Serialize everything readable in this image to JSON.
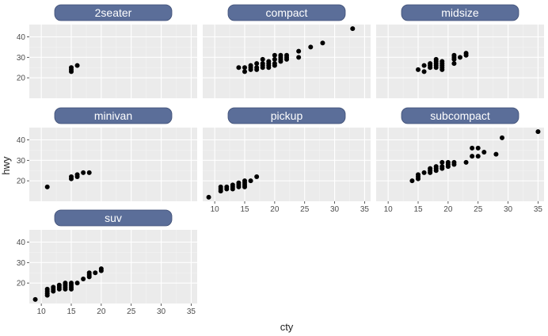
{
  "chart_data": {
    "type": "scatter",
    "xlabel": "cty",
    "ylabel": "hwy",
    "xlim": [
      8,
      36
    ],
    "ylim": [
      10,
      46
    ],
    "x_ticks": [
      10,
      15,
      20,
      25,
      30,
      35
    ],
    "y_ticks": [
      20,
      30,
      40
    ],
    "grid": true,
    "colors": {
      "panel_bg": "#ebebeb",
      "grid_major": "#ffffff",
      "grid_minor": "#f4f4f4",
      "strip_fill": "#5b6e99",
      "strip_text": "#ffffff",
      "point": "#000000",
      "axis_text": "#4d4d4d",
      "title_text": "#222222"
    },
    "facets": [
      {
        "name": "2seater",
        "points": [
          [
            15,
            23
          ],
          [
            15,
            24
          ],
          [
            15,
            25
          ],
          [
            16,
            26
          ]
        ]
      },
      {
        "name": "compact",
        "points": [
          [
            14,
            25
          ],
          [
            15,
            25
          ],
          [
            15,
            23
          ],
          [
            16,
            24
          ],
          [
            16,
            25
          ],
          [
            16,
            26
          ],
          [
            17,
            25
          ],
          [
            17,
            27
          ],
          [
            17,
            24
          ],
          [
            18,
            26
          ],
          [
            18,
            27
          ],
          [
            18,
            29
          ],
          [
            18,
            25
          ],
          [
            19,
            26
          ],
          [
            19,
            25
          ],
          [
            19,
            28
          ],
          [
            19,
            27
          ],
          [
            20,
            27
          ],
          [
            20,
            26
          ],
          [
            20,
            29
          ],
          [
            20,
            31
          ],
          [
            21,
            28
          ],
          [
            21,
            30
          ],
          [
            21,
            31
          ],
          [
            21,
            29
          ],
          [
            22,
            31
          ],
          [
            22,
            29
          ],
          [
            22,
            30
          ],
          [
            24,
            33
          ],
          [
            24,
            30
          ],
          [
            26,
            35
          ],
          [
            28,
            37
          ],
          [
            33,
            44
          ]
        ]
      },
      {
        "name": "midsize",
        "points": [
          [
            15,
            24
          ],
          [
            16,
            26
          ],
          [
            16,
            23
          ],
          [
            17,
            25
          ],
          [
            17,
            26
          ],
          [
            17,
            27
          ],
          [
            18,
            26
          ],
          [
            18,
            27
          ],
          [
            18,
            28
          ],
          [
            18,
            29
          ],
          [
            18,
            25
          ],
          [
            19,
            27
          ],
          [
            19,
            28
          ],
          [
            19,
            26
          ],
          [
            19,
            25
          ],
          [
            19,
            24
          ],
          [
            21,
            27
          ],
          [
            21,
            29
          ],
          [
            21,
            30
          ],
          [
            21,
            31
          ],
          [
            22,
            30
          ],
          [
            23,
            31
          ],
          [
            23,
            32
          ]
        ]
      },
      {
        "name": "minivan",
        "points": [
          [
            11,
            17
          ],
          [
            15,
            21
          ],
          [
            15,
            22
          ],
          [
            16,
            22
          ],
          [
            16,
            23
          ],
          [
            17,
            24
          ],
          [
            18,
            24
          ]
        ]
      },
      {
        "name": "pickup",
        "points": [
          [
            9,
            12
          ],
          [
            11,
            15
          ],
          [
            11,
            16
          ],
          [
            11,
            17
          ],
          [
            12,
            16
          ],
          [
            12,
            17
          ],
          [
            13,
            16
          ],
          [
            13,
            17
          ],
          [
            13,
            18
          ],
          [
            14,
            17
          ],
          [
            14,
            18
          ],
          [
            14,
            19
          ],
          [
            15,
            17
          ],
          [
            15,
            18
          ],
          [
            15,
            19
          ],
          [
            15,
            20
          ],
          [
            16,
            20
          ],
          [
            17,
            22
          ]
        ]
      },
      {
        "name": "subcompact",
        "points": [
          [
            14,
            20
          ],
          [
            15,
            21
          ],
          [
            15,
            22
          ],
          [
            15,
            23
          ],
          [
            16,
            24
          ],
          [
            17,
            24
          ],
          [
            17,
            25
          ],
          [
            17,
            26
          ],
          [
            18,
            25
          ],
          [
            18,
            26
          ],
          [
            18,
            27
          ],
          [
            19,
            26
          ],
          [
            19,
            27
          ],
          [
            19,
            29
          ],
          [
            20,
            27
          ],
          [
            20,
            28
          ],
          [
            20,
            29
          ],
          [
            21,
            28
          ],
          [
            21,
            29
          ],
          [
            23,
            29
          ],
          [
            24,
            32
          ],
          [
            24,
            36
          ],
          [
            25,
            32
          ],
          [
            25,
            36
          ],
          [
            26,
            34
          ],
          [
            28,
            33
          ],
          [
            29,
            41
          ],
          [
            35,
            44
          ]
        ]
      },
      {
        "name": "suv",
        "points": [
          [
            9,
            12
          ],
          [
            11,
            14
          ],
          [
            11,
            15
          ],
          [
            11,
            16
          ],
          [
            11,
            17
          ],
          [
            12,
            16
          ],
          [
            12,
            17
          ],
          [
            12,
            18
          ],
          [
            13,
            17
          ],
          [
            13,
            18
          ],
          [
            13,
            19
          ],
          [
            14,
            17
          ],
          [
            14,
            18
          ],
          [
            14,
            19
          ],
          [
            14,
            20
          ],
          [
            15,
            17
          ],
          [
            15,
            18
          ],
          [
            15,
            19
          ],
          [
            15,
            20
          ],
          [
            16,
            20
          ],
          [
            17,
            22
          ],
          [
            18,
            23
          ],
          [
            18,
            24
          ],
          [
            18,
            25
          ],
          [
            19,
            25
          ],
          [
            20,
            26
          ],
          [
            20,
            27
          ]
        ]
      }
    ]
  }
}
